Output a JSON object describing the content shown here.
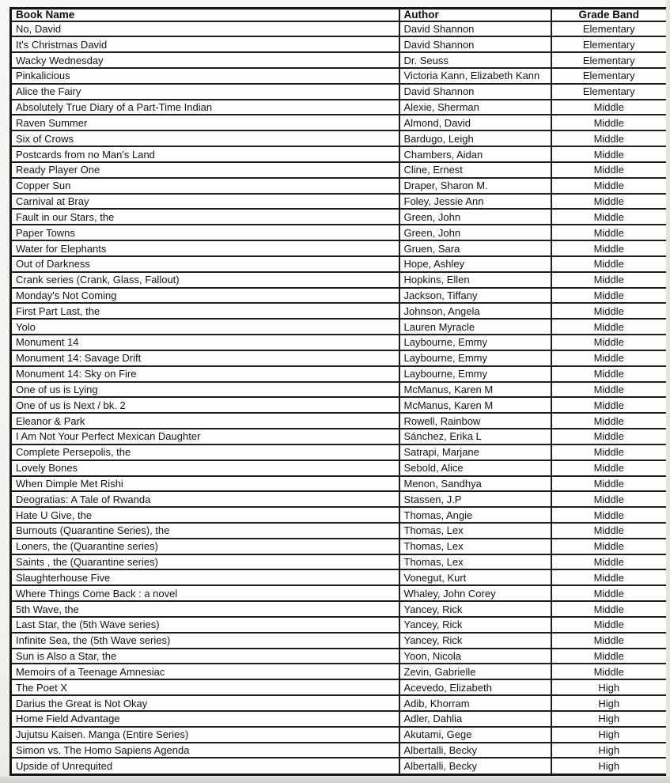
{
  "table": {
    "columns": [
      "Book Name",
      "Author",
      "Grade Band"
    ],
    "rows": [
      [
        "No, David",
        "David Shannon",
        "Elementary"
      ],
      [
        "It's Christmas David",
        "David Shannon",
        "Elementary"
      ],
      [
        "Wacky Wednesday",
        "Dr. Seuss",
        "Elementary"
      ],
      [
        "Pinkalicious",
        "Victoria Kann, Elizabeth Kann",
        "Elementary"
      ],
      [
        "Alice the Fairy",
        "David Shannon",
        "Elementary"
      ],
      [
        "Absolutely True Diary of a Part-Time Indian",
        "Alexie, Sherman",
        "Middle"
      ],
      [
        "Raven Summer",
        "Almond, David",
        "Middle"
      ],
      [
        "Six of Crows",
        "Bardugo, Leigh",
        "Middle"
      ],
      [
        "Postcards from no Man's Land",
        "Chambers, Aidan",
        "Middle"
      ],
      [
        "Ready Player One",
        "Cline, Ernest",
        "Middle"
      ],
      [
        "Copper Sun",
        "Draper, Sharon M.",
        "Middle"
      ],
      [
        "Carnival at Bray",
        "Foley, Jessie Ann",
        "Middle"
      ],
      [
        "Fault in our Stars, the",
        "Green, John",
        "Middle"
      ],
      [
        "Paper Towns",
        "Green, John",
        "Middle"
      ],
      [
        "Water for Elephants",
        "Gruen, Sara",
        "Middle"
      ],
      [
        "Out of Darkness",
        "Hope, Ashley",
        "Middle"
      ],
      [
        "Crank series (Crank, Glass, Fallout)",
        "Hopkins, Ellen",
        "Middle"
      ],
      [
        "Monday's Not Coming",
        "Jackson, Tiffany",
        "Middle"
      ],
      [
        "First Part Last, the",
        "Johnson, Angela",
        "Middle"
      ],
      [
        "Yolo",
        "Lauren Myracle",
        "Middle"
      ],
      [
        "Monument 14",
        "Laybourne, Emmy",
        "Middle"
      ],
      [
        "Monument 14: Savage Drift",
        "Laybourne, Emmy",
        "Middle"
      ],
      [
        "Monument 14: Sky on Fire",
        "Laybourne, Emmy",
        "Middle"
      ],
      [
        "One of us is Lying",
        "McManus, Karen M",
        "Middle"
      ],
      [
        "One of us is Next / bk. 2",
        "McManus, Karen M",
        "Middle"
      ],
      [
        "Eleanor & Park",
        "Rowell, Rainbow",
        "Middle"
      ],
      [
        "I Am Not Your Perfect Mexican Daughter",
        "Sánchez, Erika L",
        "Middle"
      ],
      [
        "Complete Persepolis, the",
        "Satrapi, Marjane",
        "Middle"
      ],
      [
        "Lovely Bones",
        "Sebold, Alice",
        "Middle"
      ],
      [
        "When Dimple Met Rishi",
        "Menon, Sandhya",
        "Middle"
      ],
      [
        "Deogratias: A Tale of Rwanda",
        "Stassen, J.P",
        "Middle"
      ],
      [
        "Hate U Give, the",
        "Thomas, Angie",
        "Middle"
      ],
      [
        "Burnouts (Quarantine Series), the",
        "Thomas, Lex",
        "Middle"
      ],
      [
        "Loners, the (Quarantine series)",
        "Thomas, Lex",
        "Middle"
      ],
      [
        "Saints , the (Quarantine series)",
        "Thomas, Lex",
        "Middle"
      ],
      [
        "Slaughterhouse Five",
        "Vonegut, Kurt",
        "Middle"
      ],
      [
        "Where Things Come Back : a novel",
        "Whaley, John Corey",
        "Middle"
      ],
      [
        "5th Wave, the",
        "Yancey, Rick",
        "Middle"
      ],
      [
        "Last Star, the (5th Wave series)",
        "Yancey, Rick",
        "Middle"
      ],
      [
        "Infinite Sea, the (5th Wave series)",
        "Yancey, Rick",
        "Middle"
      ],
      [
        "Sun is Also a Star, the",
        "Yoon, Nicola",
        "Middle"
      ],
      [
        "Memoirs of a Teenage Amnesiac",
        "Zevin, Gabrielle",
        "Middle"
      ],
      [
        "The Poet X",
        "Acevedo, Elizabeth",
        "High"
      ],
      [
        "Darius the Great is Not Okay",
        "Adib, Khorram",
        "High"
      ],
      [
        "Home Field Advantage",
        "Adler, Dahlia",
        "High"
      ],
      [
        "Jujutsu Kaisen. Manga (Entire Series)",
        "Akutami, Gege",
        "High"
      ],
      [
        "Simon vs. The Homo Sapiens Agenda",
        "Albertalli, Becky",
        "High"
      ],
      [
        "Upside of Unrequited",
        "Albertalli, Becky",
        "High"
      ]
    ]
  }
}
